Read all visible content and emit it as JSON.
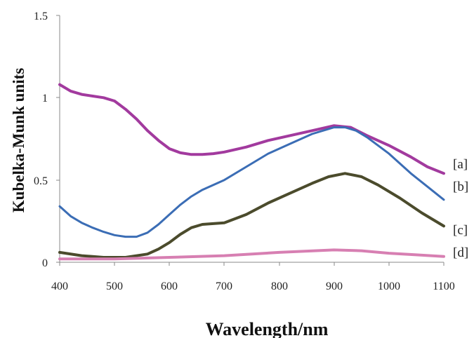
{
  "chart_data": {
    "type": "line",
    "title": "",
    "xlabel": "Wavelength/nm",
    "ylabel": "Kubelka-Munk units",
    "xlim": [
      400,
      1100
    ],
    "ylim": [
      0,
      1.5
    ],
    "x_ticks": [
      "400",
      "500",
      "600",
      "700",
      "800",
      "900",
      "1000",
      "1100"
    ],
    "y_ticks": [
      "0",
      "0.5",
      "1",
      "1.5"
    ],
    "grid": false,
    "legend": "inline-right",
    "series": [
      {
        "name": "[a]",
        "color": "#a23a9e",
        "points": [
          [
            400,
            1.08
          ],
          [
            420,
            1.04
          ],
          [
            440,
            1.02
          ],
          [
            460,
            1.01
          ],
          [
            480,
            1.0
          ],
          [
            500,
            0.98
          ],
          [
            520,
            0.93
          ],
          [
            540,
            0.87
          ],
          [
            560,
            0.8
          ],
          [
            580,
            0.74
          ],
          [
            600,
            0.69
          ],
          [
            620,
            0.665
          ],
          [
            640,
            0.655
          ],
          [
            660,
            0.655
          ],
          [
            680,
            0.66
          ],
          [
            700,
            0.67
          ],
          [
            740,
            0.7
          ],
          [
            780,
            0.74
          ],
          [
            820,
            0.77
          ],
          [
            860,
            0.8
          ],
          [
            900,
            0.83
          ],
          [
            930,
            0.82
          ],
          [
            960,
            0.77
          ],
          [
            1000,
            0.71
          ],
          [
            1040,
            0.64
          ],
          [
            1070,
            0.58
          ],
          [
            1100,
            0.54
          ]
        ]
      },
      {
        "name": "[b]",
        "color": "#3b6db5",
        "points": [
          [
            400,
            0.34
          ],
          [
            420,
            0.28
          ],
          [
            440,
            0.24
          ],
          [
            460,
            0.21
          ],
          [
            480,
            0.185
          ],
          [
            500,
            0.165
          ],
          [
            520,
            0.155
          ],
          [
            540,
            0.155
          ],
          [
            560,
            0.18
          ],
          [
            580,
            0.23
          ],
          [
            600,
            0.29
          ],
          [
            620,
            0.35
          ],
          [
            640,
            0.4
          ],
          [
            660,
            0.44
          ],
          [
            680,
            0.47
          ],
          [
            700,
            0.5
          ],
          [
            740,
            0.58
          ],
          [
            780,
            0.66
          ],
          [
            820,
            0.72
          ],
          [
            860,
            0.78
          ],
          [
            900,
            0.82
          ],
          [
            920,
            0.82
          ],
          [
            940,
            0.8
          ],
          [
            960,
            0.76
          ],
          [
            1000,
            0.66
          ],
          [
            1040,
            0.54
          ],
          [
            1070,
            0.46
          ],
          [
            1100,
            0.38
          ]
        ]
      },
      {
        "name": "[c]",
        "color": "#4b4b2c",
        "points": [
          [
            400,
            0.06
          ],
          [
            440,
            0.04
          ],
          [
            480,
            0.03
          ],
          [
            520,
            0.03
          ],
          [
            560,
            0.05
          ],
          [
            580,
            0.08
          ],
          [
            600,
            0.12
          ],
          [
            620,
            0.17
          ],
          [
            640,
            0.21
          ],
          [
            660,
            0.23
          ],
          [
            680,
            0.235
          ],
          [
            700,
            0.24
          ],
          [
            740,
            0.29
          ],
          [
            780,
            0.36
          ],
          [
            820,
            0.42
          ],
          [
            860,
            0.48
          ],
          [
            890,
            0.52
          ],
          [
            920,
            0.54
          ],
          [
            950,
            0.52
          ],
          [
            980,
            0.47
          ],
          [
            1020,
            0.39
          ],
          [
            1060,
            0.3
          ],
          [
            1100,
            0.22
          ]
        ]
      },
      {
        "name": "[d]",
        "color": "#d77fb2",
        "points": [
          [
            400,
            0.02
          ],
          [
            500,
            0.02
          ],
          [
            600,
            0.03
          ],
          [
            700,
            0.04
          ],
          [
            800,
            0.06
          ],
          [
            900,
            0.075
          ],
          [
            950,
            0.07
          ],
          [
            1000,
            0.055
          ],
          [
            1050,
            0.045
          ],
          [
            1100,
            0.035
          ]
        ]
      }
    ]
  }
}
